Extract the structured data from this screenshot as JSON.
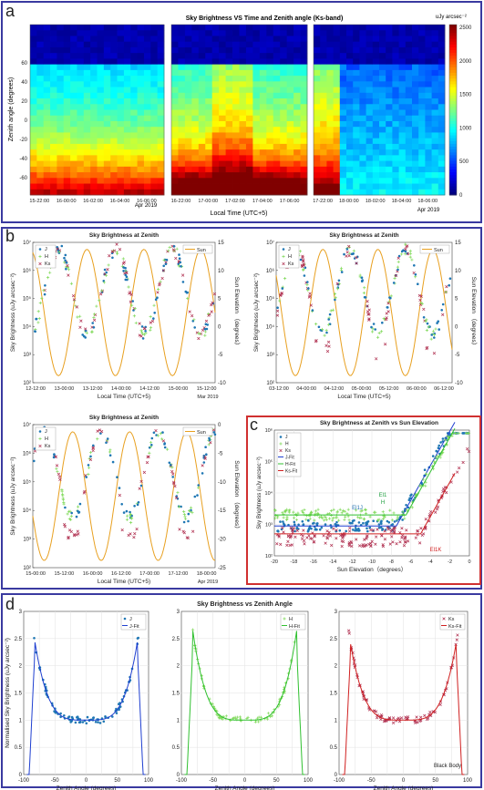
{
  "panels": {
    "a": {
      "letter": "a"
    },
    "b": {
      "letter": "b"
    },
    "c": {
      "letter": "c"
    },
    "d": {
      "letter": "d"
    }
  },
  "heatmap": {
    "title": "Sky Brightness VS Time and Zenith angle (Ks-band)",
    "ylabel": "Zenith angle (degrees)",
    "xlabel": "Local Time (UTC+5)",
    "yticks": [
      "60",
      "40",
      "20",
      "0",
      "-20",
      "-40",
      "-60"
    ],
    "unit": "uJy arcsec⁻²",
    "cbticks": [
      "2500",
      "2000",
      "1500",
      "1000",
      "500",
      "0"
    ],
    "segments": [
      {
        "ticks": [
          "15-22:00",
          "16-00:00",
          "16-02:00",
          "16-04:00",
          "16-06:00"
        ],
        "datelabel": "Apr 2019"
      },
      {
        "ticks": [
          "16-22:00",
          "17-00:00",
          "17-02:00",
          "17-04:00",
          "17-06:00"
        ],
        "datelabel": ""
      },
      {
        "ticks": [
          "17-22:00",
          "18-00:00",
          "18-02:00",
          "18-04:00",
          "18-06:00"
        ],
        "datelabel": "Apr 2019"
      }
    ]
  },
  "chart_data": [
    {
      "type": "heatmap",
      "title": "Sky Brightness VS Time and Zenith angle (Ks-band)",
      "xlabel": "Local Time (UTC+5)",
      "ylabel": "Zenith angle (degrees)",
      "ylim": [
        -75,
        90
      ],
      "colorbar": {
        "label": "uJy arcsec^-2",
        "range": [
          0,
          2500
        ]
      },
      "colormap": "jet"
    },
    {
      "type": "scatter",
      "title": "Sky Brightness at Zenith",
      "xlabel": "Local Time (UTC+5)",
      "ylabel": "Sky Brightness (uJy arcsec⁻²)",
      "y2label": "Sun Elevation （degrees）",
      "ylim": [
        100,
        10000000
      ],
      "y2lim": [
        -10,
        15
      ],
      "yticks": [
        "10²",
        "10³",
        "10⁴",
        "10⁵",
        "10⁶",
        "10⁷"
      ],
      "y2ticks": [
        "15",
        "10",
        "5",
        "0",
        "-5",
        "-10"
      ],
      "xticks": [
        "12-12:00",
        "13-00:00",
        "13-12:00",
        "14-00:00",
        "14-12:00",
        "15-00:00",
        "15-12:00"
      ],
      "datelabel": "Mar 2019",
      "legend": [
        "J",
        "H",
        "Ks"
      ],
      "sun_legend": "Sun"
    },
    {
      "type": "scatter",
      "title": "Sky Brightness at Zenith",
      "xlabel": "Local Time (UTC+5)",
      "ylabel": "Sky Brightness (uJy arcsec⁻²)",
      "y2label": "Sun Elevation （degrees）",
      "ylim": [
        100,
        10000000
      ],
      "y2lim": [
        -10,
        15
      ],
      "yticks": [
        "10²",
        "10³",
        "10⁴",
        "10⁵",
        "10⁶",
        "10⁷"
      ],
      "y2ticks": [
        "15",
        "10",
        "5",
        "0",
        "-5",
        "-10"
      ],
      "xticks": [
        "03-12:00",
        "04-00:00",
        "04-12:00",
        "05-00:00",
        "05-12:00",
        "06-00:00",
        "06-12:00"
      ],
      "datelabel": "",
      "legend": [
        "J",
        "H",
        "Ks"
      ],
      "sun_legend": "Sun"
    },
    {
      "type": "scatter",
      "title": "Sky Brightness at Zenith",
      "xlabel": "Local Time (UTC+5)",
      "ylabel": "Sky Brightness (uJy arcsec⁻²)",
      "y2label": "Sun Elevation （degrees）",
      "ylim": [
        100,
        10000000
      ],
      "y2lim": [
        -25,
        0
      ],
      "yticks": [
        "10²",
        "10³",
        "10⁴",
        "10⁵",
        "10⁶",
        "10⁷"
      ],
      "y2ticks": [
        "0",
        "-5",
        "-10",
        "-15",
        "-20",
        "-25"
      ],
      "xticks": [
        "15-00:00",
        "15-12:00",
        "16-00:00",
        "16-12:00",
        "17-00:00",
        "17-12:00",
        "18-00:00"
      ],
      "datelabel": "Apr 2019",
      "legend": [
        "J",
        "H",
        "Ks"
      ],
      "sun_legend": "Sun"
    },
    {
      "type": "scatter",
      "title": "Sky Brightness at Zenith vs Sun Elevation",
      "xlabel": "Sun Elevation（degrees）",
      "ylabel": "Sky Brightness (uJy arcsec⁻²)",
      "xlim": [
        -20,
        0
      ],
      "ylim": [
        100,
        1000000
      ],
      "xticks": [
        "-20",
        "-18",
        "-16",
        "-14",
        "-12",
        "-10",
        "-8",
        "-6",
        "-4",
        "-2",
        "0"
      ],
      "yticks": [
        "10²",
        "10³",
        "10⁴",
        "10⁵",
        "10⁶"
      ],
      "legend": [
        "J",
        "H",
        "Ks",
        "J-Fit",
        "H-Fit",
        "Ks-Fit"
      ],
      "annotations": [
        "El1J",
        "El1\nH",
        "El1K"
      ]
    },
    {
      "type": "scatter",
      "title": "",
      "xlabel": "Zenith Angle (degrees)",
      "ylabel": "Normalised Sky Brightness (uJy arcsec⁻²)",
      "xlim": [
        -100,
        100
      ],
      "ylim": [
        0,
        3
      ],
      "xticks": [
        "-100",
        "-50",
        "0",
        "50",
        "100"
      ],
      "yticks": [
        "0",
        "0.5",
        "1",
        "1.5",
        "2",
        "2.5",
        "3"
      ],
      "legend": [
        "J",
        "J-Fit"
      ]
    },
    {
      "type": "scatter",
      "title": "Sky Brightness vs Zenith Angle",
      "xlabel": "Zenith Angle (degrees)",
      "xlim": [
        -100,
        100
      ],
      "ylim": [
        0,
        3
      ],
      "xticks": [
        "-100",
        "-50",
        "0",
        "50",
        "100"
      ],
      "yticks": [
        "0",
        "0.5",
        "1",
        "1.5",
        "2",
        "2.5",
        "3"
      ],
      "legend": [
        "H",
        "H-Fit"
      ]
    },
    {
      "type": "scatter",
      "title": "",
      "xlabel": "Zenith Angle (degrees)",
      "xlim": [
        -100,
        100
      ],
      "ylim": [
        0,
        3
      ],
      "xticks": [
        "-100",
        "-50",
        "0",
        "50",
        "100"
      ],
      "yticks": [
        "0",
        "0.5",
        "1",
        "1.5",
        "2",
        "2.5",
        "3"
      ],
      "legend": [
        "Ks",
        "Ks-Fit"
      ],
      "annotations": [
        "Black Body"
      ]
    }
  ],
  "colors": {
    "J": "#1f77b4",
    "H": "#7ed957",
    "Ks": "#b03050",
    "Sun": "#e8a020",
    "Jfit": "#1f3fd0",
    "Hfit": "#30c030",
    "Ksfit": "#d02020",
    "border": "#3a3aa0",
    "redborder": "#d03030"
  }
}
